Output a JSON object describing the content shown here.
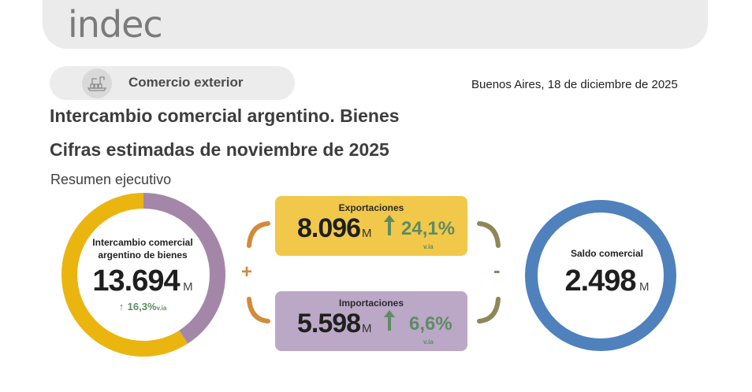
{
  "header": {
    "logo_text": "indec"
  },
  "section": {
    "label": "Comercio exterior",
    "icon": "port-cranes-icon"
  },
  "date": "Buenos Aires, 18 de diciembre de 2025",
  "titles": {
    "line1": "Intercambio comercial argentino. Bienes",
    "line2": "Cifras estimadas de noviembre de 2025",
    "subtitle": "Resumen ejecutivo"
  },
  "intercambio": {
    "label_line1": "Intercambio comercial",
    "label_line2": "argentino de bienes",
    "value": "13.694",
    "unit": "M",
    "growth": "16,3%",
    "growth_suffix": "v.ia",
    "share_exportaciones": 0.591,
    "share_importaciones": 0.409
  },
  "exportaciones": {
    "label": "Exportaciones",
    "value": "8.096",
    "unit": "M",
    "growth": "24,1%",
    "growth_suffix": "v.ia"
  },
  "importaciones": {
    "label": "Importaciones",
    "value": "5.598",
    "unit": "M",
    "growth": "6,6%",
    "growth_suffix": "v.ia"
  },
  "saldo": {
    "label": "Saldo comercial",
    "value": "2.498",
    "unit": "M"
  },
  "operators": {
    "plus": "+",
    "minus": "-"
  },
  "colors": {
    "exportaciones": "#ebb50f",
    "importaciones": "#a487a8",
    "saldo": "#4f81bd",
    "growth": "#5d8c63",
    "bracket_left": "#d28a3b",
    "bracket_right": "#8e8758"
  }
}
